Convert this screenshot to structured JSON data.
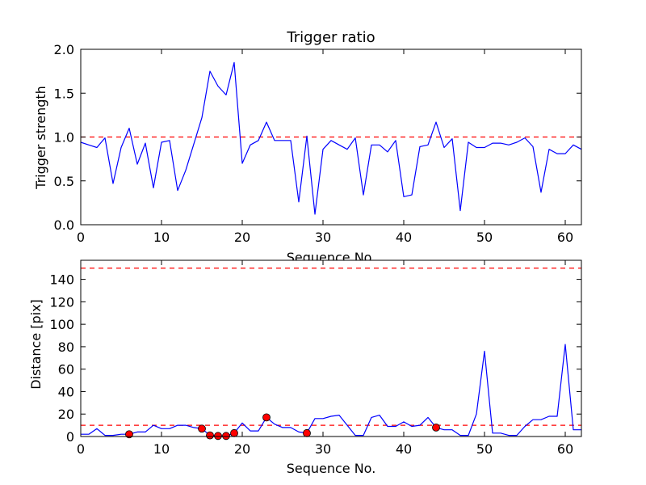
{
  "colors": {
    "line": "#0000ff",
    "threshold": "#ff0000",
    "marker": "#ff0000",
    "axis": "#000000",
    "background": "#ffffff"
  },
  "chart_data": [
    {
      "type": "line",
      "title": "Trigger ratio",
      "xlabel": "Sequence No.",
      "ylabel": "Trigger strength",
      "xlim": [
        0,
        62
      ],
      "ylim": [
        0,
        2.0
      ],
      "xticks": [
        0,
        10,
        20,
        30,
        40,
        50,
        60
      ],
      "xtick_labels": [
        "0",
        "10",
        "20",
        "30",
        "40",
        "50",
        "60"
      ],
      "yticks": [
        0,
        0.5,
        1.0,
        1.5,
        2.0
      ],
      "ytick_labels": [
        "0.0",
        "0.5",
        "1.0",
        "1.5",
        "2.0"
      ],
      "grid": false,
      "threshold": 1.0,
      "series": [
        {
          "name": "trigger strength",
          "x": [
            0,
            1,
            2,
            3,
            4,
            5,
            6,
            7,
            8,
            9,
            10,
            11,
            12,
            13,
            14,
            15,
            16,
            17,
            18,
            19,
            20,
            21,
            22,
            23,
            24,
            25,
            26,
            27,
            28,
            29,
            30,
            31,
            32,
            33,
            34,
            35,
            36,
            37,
            38,
            39,
            40,
            41,
            42,
            43,
            44,
            45,
            46,
            47,
            48,
            49,
            50,
            51,
            52,
            53,
            54,
            55,
            56,
            57,
            58,
            59,
            60,
            61,
            62
          ],
          "values": [
            0.94,
            0.91,
            0.88,
            0.99,
            0.47,
            0.88,
            1.1,
            0.69,
            0.93,
            0.42,
            0.94,
            0.96,
            0.39,
            0.62,
            0.92,
            1.22,
            1.75,
            1.58,
            1.48,
            1.85,
            0.7,
            0.91,
            0.96,
            1.17,
            0.96,
            0.96,
            0.96,
            0.26,
            1.01,
            0.12,
            0.86,
            0.96,
            0.91,
            0.86,
            0.99,
            0.34,
            0.91,
            0.91,
            0.83,
            0.96,
            0.32,
            0.34,
            0.89,
            0.91,
            1.17,
            0.88,
            0.98,
            0.16,
            0.94,
            0.88,
            0.88,
            0.93,
            0.93,
            0.91,
            0.94,
            0.99,
            0.89,
            0.37,
            0.86,
            0.81,
            0.81,
            0.91,
            0.86
          ]
        }
      ]
    },
    {
      "type": "line",
      "title": "",
      "xlabel": "Sequence No.",
      "ylabel": "Distance [pix]",
      "xlim": [
        0,
        62
      ],
      "ylim": [
        0,
        157
      ],
      "xticks": [
        0,
        10,
        20,
        30,
        40,
        50,
        60
      ],
      "xtick_labels": [
        "0",
        "10",
        "20",
        "30",
        "40",
        "50",
        "60"
      ],
      "yticks": [
        0,
        20,
        40,
        60,
        80,
        100,
        120,
        140
      ],
      "ytick_labels": [
        "0",
        "20",
        "40",
        "60",
        "80",
        "100",
        "120",
        "140"
      ],
      "grid": false,
      "thresholds": [
        10,
        150
      ],
      "series": [
        {
          "name": "distance",
          "x": [
            0,
            1,
            2,
            3,
            4,
            5,
            6,
            7,
            8,
            9,
            10,
            11,
            12,
            13,
            14,
            15,
            16,
            17,
            18,
            19,
            20,
            21,
            22,
            23,
            24,
            25,
            26,
            27,
            28,
            29,
            30,
            31,
            32,
            33,
            34,
            35,
            36,
            37,
            38,
            39,
            40,
            41,
            42,
            43,
            44,
            45,
            46,
            47,
            48,
            49,
            50,
            51,
            52,
            53,
            54,
            55,
            56,
            57,
            58,
            59,
            60,
            61,
            62
          ],
          "values": [
            2,
            2,
            7,
            1,
            1,
            2,
            2,
            4,
            4,
            10,
            7,
            7,
            10,
            10,
            8,
            7,
            1,
            0.5,
            0.5,
            3,
            12,
            5,
            5,
            17,
            11,
            8,
            8,
            4,
            3,
            16,
            16,
            18,
            19,
            10,
            1,
            1,
            17,
            19,
            9,
            9,
            13,
            9,
            10,
            17,
            8,
            6,
            6,
            1,
            1,
            20,
            76,
            3,
            3,
            1,
            1,
            9,
            15,
            15,
            18,
            18,
            82,
            6,
            6
          ]
        }
      ],
      "markers": {
        "name": "flagged points",
        "x": [
          6,
          15,
          16,
          17,
          18,
          19,
          23,
          28,
          44
        ],
        "values": [
          2,
          7,
          1,
          0.5,
          0.5,
          3,
          17,
          3,
          8
        ]
      }
    }
  ]
}
